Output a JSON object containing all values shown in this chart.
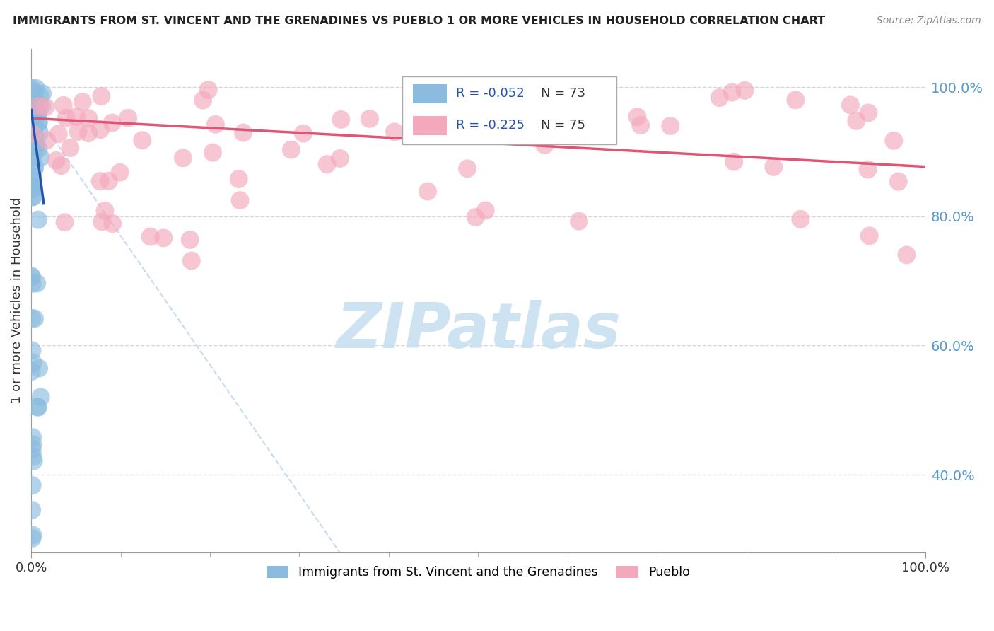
{
  "title": "IMMIGRANTS FROM ST. VINCENT AND THE GRENADINES VS PUEBLO 1 OR MORE VEHICLES IN HOUSEHOLD CORRELATION CHART",
  "source": "Source: ZipAtlas.com",
  "ylabel": "1 or more Vehicles in Household",
  "legend_blue_label": "Immigrants from St. Vincent and the Grenadines",
  "legend_pink_label": "Pueblo",
  "legend_blue_r": "-0.052",
  "legend_pink_r": "-0.225",
  "legend_blue_n": "73",
  "legend_pink_n": "75",
  "blue_color": "#8bbcdf",
  "pink_color": "#f4a8bc",
  "blue_line_color": "#2255aa",
  "pink_line_color": "#e05575",
  "blue_dash_color": "#aaccee",
  "watermark_color": "#c8e0f0",
  "bg_color": "#ffffff",
  "grid_color": "#cccccc",
  "ytick_color": "#5599cc",
  "xlim": [
    0.0,
    1.0
  ],
  "ylim": [
    0.28,
    1.06
  ],
  "ytick_positions": [
    0.4,
    0.6,
    0.8,
    1.0
  ],
  "ytick_labels": [
    "40.0%",
    "60.0%",
    "80.0%",
    "100.0%"
  ]
}
